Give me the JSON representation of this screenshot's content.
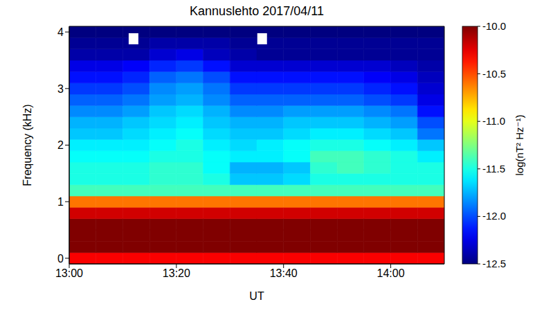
{
  "chart_data": {
    "type": "heatmap",
    "title": "Kannuslehto 2017/04/11",
    "x_label": "UT",
    "y_label": "Frequency (kHz)",
    "xlim": [
      0,
      70
    ],
    "xticks": [
      {
        "value": 0,
        "label": "13:00"
      },
      {
        "value": 20,
        "label": "13:20"
      },
      {
        "value": 40,
        "label": "13:40"
      },
      {
        "value": 60,
        "label": "14:00"
      }
    ],
    "ylim": [
      -0.1,
      4.1
    ],
    "yticks": [
      0,
      1,
      2,
      3,
      4
    ],
    "grid": false,
    "cells": {
      "x_edges": [
        0,
        5,
        10,
        15,
        20,
        25,
        30,
        35,
        40,
        45,
        50,
        55,
        60,
        65,
        70
      ],
      "y_edges": [
        -0.1,
        0.1,
        0.3,
        0.5,
        0.7,
        0.9,
        1.1,
        1.3,
        1.5,
        1.7,
        1.9,
        2.1,
        2.3,
        2.5,
        2.7,
        2.9,
        3.1,
        3.3,
        3.5,
        3.7,
        3.9,
        4.1
      ],
      "values": [
        [
          -10.3,
          -10.3,
          -10.3,
          -10.3,
          -10.3,
          -10.3,
          -10.3,
          -10.3,
          -10.3,
          -10.3,
          -10.3,
          -10.3,
          -10.3,
          -10.3
        ],
        [
          -10.0,
          -10.0,
          -10.0,
          -10.0,
          -10.0,
          -10.0,
          -10.0,
          -10.0,
          -10.0,
          -10.0,
          -10.0,
          -10.0,
          -10.0,
          -10.0
        ],
        [
          -10.0,
          -10.0,
          -10.0,
          -10.0,
          -10.0,
          -10.0,
          -10.0,
          -10.0,
          -10.0,
          -10.0,
          -10.0,
          -10.0,
          -10.0,
          -10.0
        ],
        [
          -10.0,
          -10.0,
          -10.0,
          -10.0,
          -10.0,
          -10.0,
          -10.0,
          -10.0,
          -10.0,
          -10.0,
          -10.0,
          -10.0,
          -10.0,
          -10.0
        ],
        [
          -10.2,
          -10.2,
          -10.2,
          -10.2,
          -10.2,
          -10.2,
          -10.2,
          -10.2,
          -10.2,
          -10.2,
          -10.2,
          -10.2,
          -10.2,
          -10.2
        ],
        [
          -10.6,
          -10.6,
          -10.6,
          -10.6,
          -10.6,
          -10.6,
          -10.6,
          -10.6,
          -10.6,
          -10.6,
          -10.6,
          -10.6,
          -10.6,
          -10.6
        ],
        [
          -11.4,
          -11.4,
          -11.4,
          -11.4,
          -11.4,
          -11.4,
          -11.4,
          -11.4,
          -11.4,
          -11.4,
          -11.4,
          -11.4,
          -11.4,
          -11.4
        ],
        [
          -11.5,
          -11.5,
          -11.5,
          -11.45,
          -11.45,
          -11.5,
          -11.7,
          -11.7,
          -11.65,
          -11.5,
          -11.5,
          -11.5,
          -11.5,
          -11.5
        ],
        [
          -11.5,
          -11.5,
          -11.5,
          -11.45,
          -11.45,
          -11.55,
          -11.75,
          -11.75,
          -11.7,
          -11.45,
          -11.4,
          -11.45,
          -11.5,
          -11.5
        ],
        [
          -11.55,
          -11.55,
          -11.55,
          -11.5,
          -11.5,
          -11.55,
          -11.6,
          -11.6,
          -11.55,
          -11.4,
          -11.4,
          -11.45,
          -11.5,
          -11.6
        ],
        [
          -11.6,
          -11.6,
          -11.6,
          -11.55,
          -11.5,
          -11.6,
          -11.65,
          -11.6,
          -11.55,
          -11.5,
          -11.5,
          -11.55,
          -11.6,
          -11.7
        ],
        [
          -11.7,
          -11.7,
          -11.65,
          -11.6,
          -11.55,
          -11.65,
          -11.7,
          -11.7,
          -11.65,
          -11.6,
          -11.6,
          -11.65,
          -11.7,
          -11.9
        ],
        [
          -11.75,
          -11.75,
          -11.7,
          -11.65,
          -11.6,
          -11.7,
          -11.75,
          -11.75,
          -11.7,
          -11.7,
          -11.7,
          -11.75,
          -11.8,
          -12.0
        ],
        [
          -11.85,
          -11.85,
          -11.8,
          -11.7,
          -11.65,
          -11.75,
          -11.85,
          -11.85,
          -11.8,
          -11.8,
          -11.8,
          -11.85,
          -11.9,
          -12.15
        ],
        [
          -11.95,
          -11.95,
          -11.9,
          -11.8,
          -11.75,
          -11.85,
          -11.95,
          -11.95,
          -11.95,
          -11.95,
          -11.95,
          -12.0,
          -12.05,
          -12.25
        ],
        [
          -12.05,
          -12.05,
          -12.0,
          -11.85,
          -11.8,
          -11.9,
          -12.05,
          -12.05,
          -12.05,
          -12.05,
          -12.05,
          -12.1,
          -12.15,
          -12.3
        ],
        [
          -12.15,
          -12.15,
          -12.1,
          -11.95,
          -11.9,
          -12.0,
          -12.15,
          -12.15,
          -12.15,
          -12.15,
          -12.15,
          -12.2,
          -12.25,
          -12.35
        ],
        [
          -12.25,
          -12.25,
          -12.2,
          -12.1,
          -12.05,
          -12.15,
          -12.3,
          -12.3,
          -12.3,
          -12.3,
          -12.3,
          -12.3,
          -12.35,
          -12.4
        ],
        [
          -12.4,
          -12.4,
          -12.4,
          -12.3,
          -12.25,
          -12.35,
          -12.4,
          -12.45,
          -12.45,
          -12.45,
          -12.45,
          -12.45,
          -12.45,
          -12.45
        ],
        [
          -12.45,
          -12.45,
          -12.45,
          -12.4,
          -12.4,
          -12.4,
          -12.45,
          -12.45,
          -12.45,
          -12.45,
          -12.45,
          -12.45,
          -12.45,
          -12.45
        ],
        [
          -12.5,
          -12.5,
          -12.5,
          -12.5,
          -12.5,
          -12.5,
          -12.5,
          -12.5,
          -12.5,
          -12.5,
          -12.5,
          -12.5,
          -12.5,
          -12.5
        ]
      ]
    },
    "markers": {
      "x": [
        12,
        36
      ],
      "y": [
        3.88,
        3.88
      ],
      "color": "#ffffff"
    },
    "colorbar": {
      "range": [
        -12.5,
        -10
      ],
      "ticks": [
        {
          "value": -10,
          "label": "-10.0"
        },
        -10.5,
        {
          "value": -11,
          "label": "-11.0"
        },
        -11.5,
        {
          "value": -12,
          "label": "-12.0"
        },
        -12.5
      ],
      "label": "log(nT² Hz⁻¹)"
    }
  }
}
